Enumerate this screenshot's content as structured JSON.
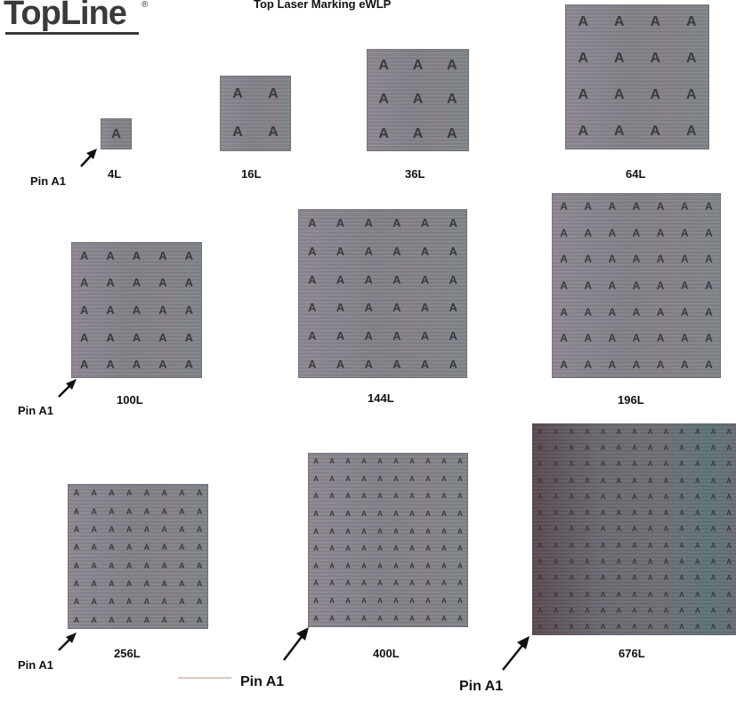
{
  "header": {
    "logo_text": "TopLine",
    "logo_mark": "®",
    "title": "Top Laser Marking eWLP"
  },
  "mark_char": "A",
  "packages": [
    {
      "label": "4L",
      "rows": 1,
      "cols": 1
    },
    {
      "label": "16L",
      "rows": 2,
      "cols": 2
    },
    {
      "label": "36L",
      "rows": 3,
      "cols": 3
    },
    {
      "label": "64L",
      "rows": 4,
      "cols": 4
    },
    {
      "label": "100L",
      "rows": 5,
      "cols": 5
    },
    {
      "label": "144L",
      "rows": 6,
      "cols": 6
    },
    {
      "label": "196L",
      "rows": 7,
      "cols": 7
    },
    {
      "label": "256L",
      "rows": 8,
      "cols": 8
    },
    {
      "label": "400L",
      "rows": 10,
      "cols": 10
    },
    {
      "label": "676L",
      "rows": 13,
      "cols": 13
    }
  ],
  "pin_label": "Pin A1",
  "colors": {
    "chip_gray": "#838389",
    "mark": "#3b3a3e",
    "text": "#111111",
    "logo": "#3a3a3a"
  }
}
